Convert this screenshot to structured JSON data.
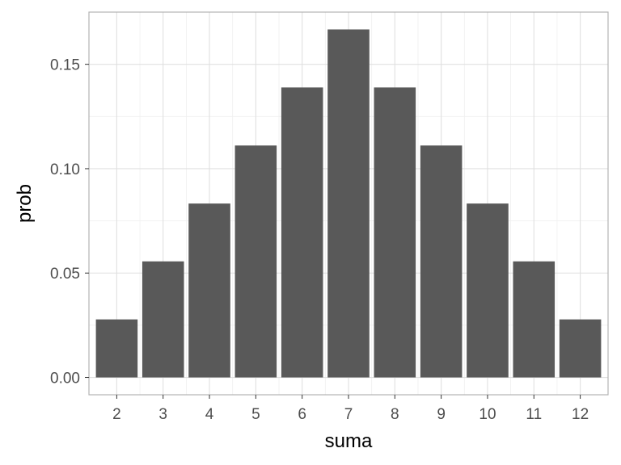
{
  "chart_data": {
    "type": "bar",
    "title": "",
    "xlabel": "suma",
    "ylabel": "prob",
    "categories": [
      "2",
      "3",
      "4",
      "5",
      "6",
      "7",
      "8",
      "9",
      "10",
      "11",
      "12"
    ],
    "values": [
      0.0278,
      0.0556,
      0.0833,
      0.1111,
      0.1389,
      0.1667,
      0.1389,
      0.1111,
      0.0833,
      0.0556,
      0.0278
    ],
    "ylim": [
      -0.0083,
      0.175
    ],
    "yticks": [
      "0.00",
      "0.05",
      "0.10",
      "0.15"
    ],
    "ytick_values": [
      0,
      0.05,
      0.1,
      0.15
    ],
    "grid": true,
    "legend": "none",
    "colors": {
      "bar": "#595959",
      "panel_border": "#b3b3b3",
      "grid_major": "#e0e0e0",
      "grid_minor": "#efefef",
      "tick_label": "#4d4d4d"
    }
  }
}
